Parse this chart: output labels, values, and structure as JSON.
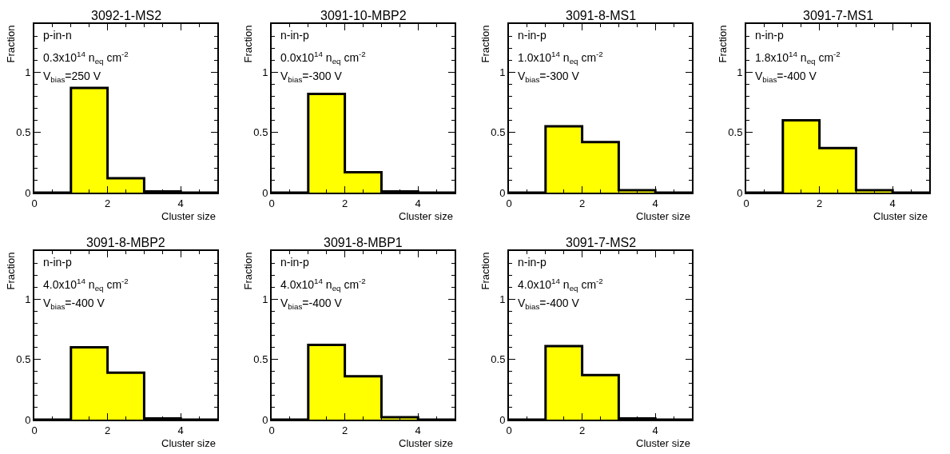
{
  "chart_data": [
    {
      "type": "histogram",
      "title": "3092-1-MS2",
      "xlabel": "Cluster size",
      "ylabel": "Fraction",
      "annotations": [
        "p-in-n",
        "0.3x10$^{14}$ n$_{eq}$ cm$^{-2}$",
        "V$_{bias}$=250 V"
      ],
      "bins": [
        0,
        1,
        2,
        3,
        4,
        5
      ],
      "values": [
        0,
        0.87,
        0.12,
        0.01,
        0
      ],
      "color": "#ffff00",
      "xlim": [
        0,
        5
      ],
      "ylim": [
        0,
        1.4
      ],
      "xticks": [
        0,
        2,
        4
      ],
      "yticks": [
        0,
        0.5,
        1
      ]
    },
    {
      "type": "histogram",
      "title": "3091-10-MBP2",
      "xlabel": "Cluster size",
      "ylabel": "Fraction",
      "annotations": [
        "n-in-p",
        "0.0x10$^{14}$ n$_{eq}$ cm$^{-2}$",
        "V$_{bias}$=-300 V"
      ],
      "bins": [
        0,
        1,
        2,
        3,
        4,
        5
      ],
      "values": [
        0,
        0.82,
        0.17,
        0.01,
        0
      ],
      "color": "#ffff00",
      "xlim": [
        0,
        5
      ],
      "ylim": [
        0,
        1.4
      ],
      "xticks": [
        0,
        2,
        4
      ],
      "yticks": [
        0,
        0.5,
        1
      ]
    },
    {
      "type": "histogram",
      "title": "3091-8-MS1",
      "xlabel": "Cluster size",
      "ylabel": "Fraction",
      "annotations": [
        "n-in-p",
        "1.0x10$^{14}$ n$_{eq}$ cm$^{-2}$",
        "V$_{bias}$=-300 V"
      ],
      "bins": [
        0,
        1,
        2,
        3,
        4,
        5
      ],
      "values": [
        0,
        0.55,
        0.42,
        0.02,
        0
      ],
      "color": "#ffff00",
      "xlim": [
        0,
        5
      ],
      "ylim": [
        0,
        1.4
      ],
      "xticks": [
        0,
        2,
        4
      ],
      "yticks": [
        0,
        0.5,
        1
      ]
    },
    {
      "type": "histogram",
      "title": "3091-7-MS1",
      "xlabel": "Cluster size",
      "ylabel": "Fraction",
      "annotations": [
        "n-in-p",
        "1.8x10$^{14}$ n$_{eq}$ cm$^{-2}$",
        "V$_{bias}$=-400 V"
      ],
      "bins": [
        0,
        1,
        2,
        3,
        4,
        5
      ],
      "values": [
        0,
        0.6,
        0.37,
        0.02,
        0
      ],
      "color": "#ffff00",
      "xlim": [
        0,
        5
      ],
      "ylim": [
        0,
        1.4
      ],
      "xticks": [
        0,
        2,
        4
      ],
      "yticks": [
        0,
        0.5,
        1
      ]
    },
    {
      "type": "histogram",
      "title": "3091-8-MBP2",
      "xlabel": "Cluster size",
      "ylabel": "Fraction",
      "annotations": [
        "n-in-p",
        "4.0x10$^{14}$ n$_{eq}$ cm$^{-2}$",
        "V$_{bias}$=-400 V"
      ],
      "bins": [
        0,
        1,
        2,
        3,
        4,
        5
      ],
      "values": [
        0,
        0.6,
        0.39,
        0.01,
        0
      ],
      "color": "#ffff00",
      "xlim": [
        0,
        5
      ],
      "ylim": [
        0,
        1.4
      ],
      "xticks": [
        0,
        2,
        4
      ],
      "yticks": [
        0,
        0.5,
        1
      ]
    },
    {
      "type": "histogram",
      "title": "3091-8-MBP1",
      "xlabel": "Cluster size",
      "ylabel": "Fraction",
      "annotations": [
        "n-in-p",
        "4.0x10$^{14}$ n$_{eq}$ cm$^{-2}$",
        "V$_{bias}$=-400 V"
      ],
      "bins": [
        0,
        1,
        2,
        3,
        4,
        5
      ],
      "values": [
        0,
        0.62,
        0.36,
        0.02,
        0
      ],
      "color": "#ffff00",
      "xlim": [
        0,
        5
      ],
      "ylim": [
        0,
        1.4
      ],
      "xticks": [
        0,
        2,
        4
      ],
      "yticks": [
        0,
        0.5,
        1
      ]
    },
    {
      "type": "histogram",
      "title": "3091-7-MS2",
      "xlabel": "Cluster size",
      "ylabel": "Fraction",
      "annotations": [
        "n-in-p",
        "4.0x10$^{14}$ n$_{eq}$ cm$^{-2}$",
        "V$_{bias}$=-400 V"
      ],
      "bins": [
        0,
        1,
        2,
        3,
        4,
        5
      ],
      "values": [
        0,
        0.61,
        0.37,
        0.01,
        0
      ],
      "color": "#ffff00",
      "xlim": [
        0,
        5
      ],
      "ylim": [
        0,
        1.4
      ],
      "xticks": [
        0,
        2,
        4
      ],
      "yticks": [
        0,
        0.5,
        1
      ]
    }
  ]
}
